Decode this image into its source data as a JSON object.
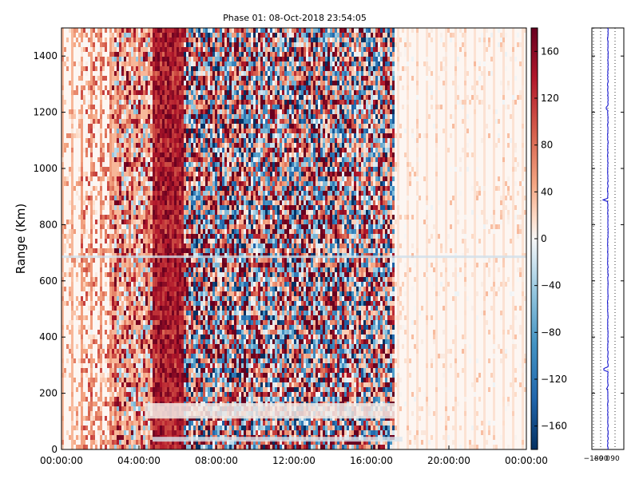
{
  "chart_data": [
    {
      "type": "heatmap",
      "title": "Phase 01: 08-Oct-2018 23:54:05",
      "ylabel": "Range (Km)",
      "xlabel": "",
      "x_ticks": [
        "00:00:00",
        "04:00:00",
        "08:00:00",
        "12:00:00",
        "16:00:00",
        "20:00:00",
        "00:00:00"
      ],
      "x_range_hours": [
        0,
        24
      ],
      "y_ticks": [
        0,
        200,
        400,
        600,
        800,
        1000,
        1200,
        1400
      ],
      "ylim": [
        0,
        1500
      ],
      "colorbar": {
        "ticks": [
          160,
          120,
          80,
          40,
          0,
          -40,
          -80,
          -120,
          -160
        ],
        "range": [
          -180,
          180
        ],
        "colormap": "RdBu_r"
      },
      "grid": false
    },
    {
      "type": "line",
      "title": "",
      "x_ticks": [
        "-180",
        "-90",
        "0",
        "90"
      ],
      "xlim": [
        -200,
        200
      ],
      "ylim": [
        0,
        1500
      ],
      "series_color": "#0000cc",
      "approx_value": 0,
      "spikes": [
        {
          "range": 890,
          "value": -60
        },
        {
          "range": 285,
          "value": -50
        },
        {
          "range": 1215,
          "value": -20
        },
        {
          "range": 215,
          "value": -15
        }
      ],
      "grid": "x-dotted"
    }
  ]
}
